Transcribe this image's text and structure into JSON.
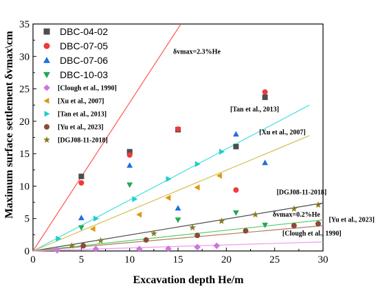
{
  "chart_data": {
    "type": "scatter",
    "xlabel": "Excavation depth He/m",
    "ylabel": "Maximum surface settlement δvmax\\cm",
    "xlim": [
      0,
      30
    ],
    "ylim": [
      0,
      35
    ],
    "xticks": [
      0,
      5,
      10,
      15,
      20,
      25,
      30
    ],
    "yticks": [
      0,
      5,
      10,
      15,
      20,
      25,
      30,
      35
    ],
    "legend_position": "top-left",
    "series": [
      {
        "name": "DBC-04-02",
        "marker": "square",
        "color": "#4d4d4d",
        "points": [
          [
            5,
            11.5
          ],
          [
            10,
            15.3
          ],
          [
            15,
            18.7
          ],
          [
            21,
            16.1
          ],
          [
            24,
            23.7
          ]
        ]
      },
      {
        "name": "DBC-07-05",
        "marker": "circle",
        "color": "#ee3a3a",
        "points": [
          [
            5,
            10.5
          ],
          [
            10,
            14.8
          ],
          [
            15,
            18.8
          ],
          [
            21,
            9.4
          ],
          [
            24,
            24.5
          ]
        ]
      },
      {
        "name": "DBC-07-06",
        "marker": "triangle-up",
        "color": "#1f6fe0",
        "points": [
          [
            5,
            5.1
          ],
          [
            10,
            13.2
          ],
          [
            15,
            6.6
          ],
          [
            21,
            18.0
          ],
          [
            24,
            13.6
          ]
        ]
      },
      {
        "name": "DBC-10-03",
        "marker": "triangle-down",
        "color": "#22aa55",
        "points": [
          [
            5,
            3.6
          ],
          [
            10,
            10.2
          ],
          [
            15,
            4.8
          ],
          [
            21,
            5.9
          ],
          [
            24,
            4.0
          ]
        ]
      },
      {
        "name": "[Clough et al., 1990]",
        "marker": "diamond",
        "color": "#cc77dd",
        "points": [
          [
            2.5,
            0.1
          ],
          [
            6.5,
            0.3
          ],
          [
            11,
            0.3
          ],
          [
            14,
            0.35
          ],
          [
            17,
            0.6
          ],
          [
            19,
            0.8
          ]
        ]
      },
      {
        "name": "[Xu et al., 2007]",
        "marker": "triangle-left",
        "color": "#dd9911",
        "points": [
          [
            6.2,
            3.4
          ],
          [
            11,
            5.6
          ],
          [
            14,
            8.2
          ],
          [
            17,
            9.8
          ],
          [
            19.3,
            11.6
          ]
        ]
      },
      {
        "name": "[Tan et al., 2013]",
        "marker": "triangle-right",
        "color": "#22cccc",
        "points": [
          [
            2.6,
            1.9
          ],
          [
            6.5,
            5.0
          ],
          [
            10.5,
            8.0
          ],
          [
            14,
            11.1
          ],
          [
            17,
            13.4
          ],
          [
            19.5,
            15.3
          ]
        ]
      },
      {
        "name": "[Yu et al., 2023]",
        "marker": "circle",
        "color": "#8b4a3a",
        "points": [
          [
            5.2,
            0.8
          ],
          [
            11.7,
            1.7
          ],
          [
            17,
            2.4
          ],
          [
            22,
            3.1
          ],
          [
            27,
            3.9
          ],
          [
            29.5,
            4.2
          ]
        ]
      },
      {
        "name": "[DGJ08-11-2018]",
        "marker": "star",
        "color": "#8a7a22",
        "points": [
          [
            4,
            0.8
          ],
          [
            7,
            1.6
          ],
          [
            12.5,
            2.7
          ],
          [
            16.5,
            3.6
          ],
          [
            19.5,
            4.6
          ],
          [
            23,
            5.6
          ],
          [
            27,
            6.5
          ],
          [
            29.5,
            7.1
          ]
        ]
      }
    ],
    "lines": [
      {
        "color": "#ff5555",
        "from": [
          0,
          0
        ],
        "to": [
          15.3,
          35
        ]
      },
      {
        "color": "#44dddd",
        "from": [
          0,
          0
        ],
        "to": [
          28.6,
          22.5
        ]
      },
      {
        "color": "#d4bf4a",
        "from": [
          0,
          0
        ],
        "to": [
          28.6,
          17.8
        ]
      },
      {
        "color": "#4a4a4a",
        "from": [
          0,
          0
        ],
        "to": [
          30,
          7.4
        ]
      },
      {
        "color": "#55cc66",
        "from": [
          0,
          0
        ],
        "to": [
          30,
          4.8
        ]
      },
      {
        "color": "#b07a5a",
        "from": [
          0,
          0
        ],
        "to": [
          30,
          3.9
        ]
      },
      {
        "color": "#ee99ee",
        "from": [
          0,
          0
        ],
        "to": [
          30,
          1.4
        ]
      }
    ],
    "annotations": [
      {
        "text": "δvmax=2.3%He",
        "at": [
          14.5,
          30.4
        ]
      },
      {
        "text": "[Tan et al., 2013]",
        "at": [
          20.4,
          21.5
        ]
      },
      {
        "text": "[Xu et al., 2007]",
        "at": [
          23.4,
          18.0
        ]
      },
      {
        "text": "[DGJ08-11-2018]",
        "at": [
          25.2,
          8.7
        ]
      },
      {
        "text": "δvmax=0.2%He",
        "at": [
          24.8,
          5.3
        ]
      },
      {
        "text": "[Yu et al., 2023]",
        "at": [
          30.6,
          4.5
        ]
      },
      {
        "text": "[Clough et al., 1990]",
        "at": [
          25.8,
          2.4
        ]
      }
    ]
  }
}
